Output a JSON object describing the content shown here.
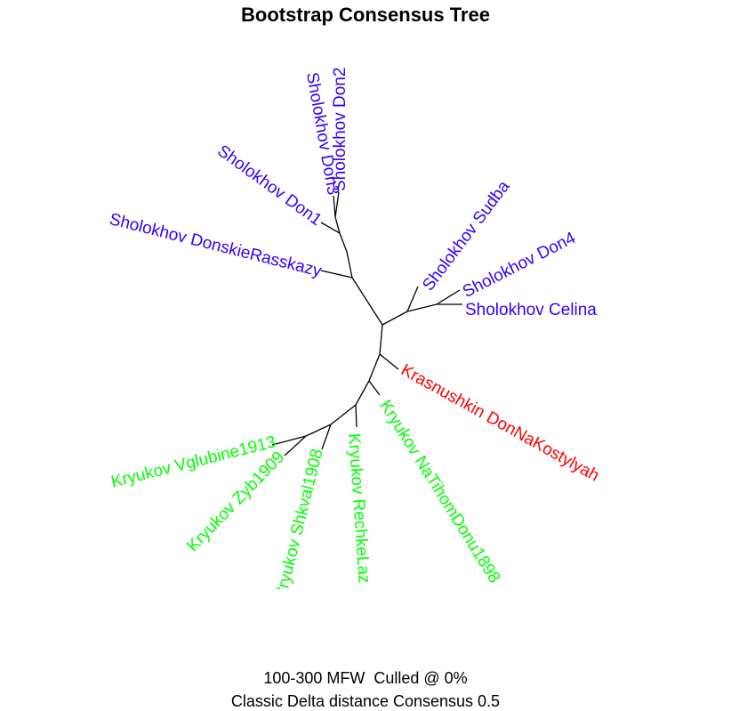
{
  "title": "Bootstrap Consensus Tree",
  "caption": {
    "line1": "100-300 MFW  Culled @ 0%",
    "line2": "Classic Delta distance Consensus 0.5"
  },
  "colors": {
    "sholokhov": "#3300ff",
    "krasnushkin": "#ff0000",
    "kryukov": "#00ff00",
    "branch": "#000000"
  },
  "leaves": [
    {
      "label": "Sholokhov Don2",
      "group": "sholokhov"
    },
    {
      "label": "Sholokhov Don3",
      "group": "sholokhov"
    },
    {
      "label": "Sholokhov Don1",
      "group": "sholokhov"
    },
    {
      "label": "Sholokhov DonskieRasskazy",
      "group": "sholokhov"
    },
    {
      "label": "Sholokhov Sudba",
      "group": "sholokhov"
    },
    {
      "label": "Sholokhov Don4",
      "group": "sholokhov"
    },
    {
      "label": "Sholokhov Celina",
      "group": "sholokhov"
    },
    {
      "label": "Krasnushkin DonNaKostylyah",
      "group": "krasnushkin"
    },
    {
      "label": "Kryukov NaTihomDonu1898",
      "group": "kryukov"
    },
    {
      "label": "Kryukov RechkeLaz",
      "group": "kryukov"
    },
    {
      "label": "'ryukov Shkval1908",
      "group": "kryukov"
    },
    {
      "label": "Kryukov Zyb1909",
      "group": "kryukov"
    },
    {
      "label": "Kryukov Vglubine1913",
      "group": "kryukov"
    }
  ]
}
